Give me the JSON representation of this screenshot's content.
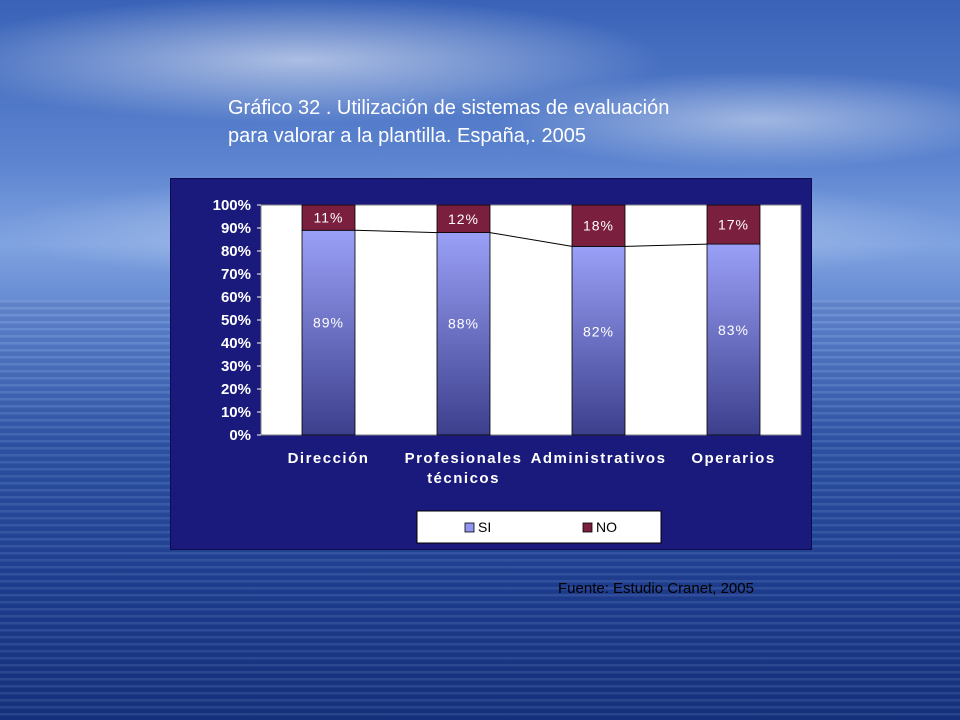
{
  "title_line1": "Gráfico 32 . Utilización de sistemas de evaluación",
  "title_line2": "para valorar a la plantilla. España,. 2005",
  "source": "Fuente: Estudio Cranet, 2005",
  "chart_data": {
    "type": "bar",
    "stacked": true,
    "percent": true,
    "categories": [
      "Dirección",
      "Profesionales técnicos",
      "Administrativos",
      "Operarios"
    ],
    "category_lines": [
      [
        "Dirección"
      ],
      [
        "Profesionales",
        "técnicos"
      ],
      [
        "Administrativos"
      ],
      [
        "Operarios"
      ]
    ],
    "series": [
      {
        "name": "SI",
        "values": [
          89,
          88,
          82,
          83
        ],
        "labels": [
          "89%",
          "88%",
          "82%",
          "83%"
        ],
        "color": "#8f95f0"
      },
      {
        "name": "NO",
        "values": [
          11,
          12,
          18,
          17
        ],
        "labels": [
          "11%",
          "12%",
          "18%",
          "17%"
        ],
        "color": "#7a1f3e"
      }
    ],
    "yticks": [
      "0%",
      "10%",
      "20%",
      "30%",
      "40%",
      "50%",
      "60%",
      "70%",
      "80%",
      "90%",
      "100%"
    ],
    "ylim": [
      0,
      100
    ],
    "series_lines": true,
    "legend_position": "bottom",
    "background_color": "#1a1a7c",
    "plot_color": "#ffffff"
  }
}
